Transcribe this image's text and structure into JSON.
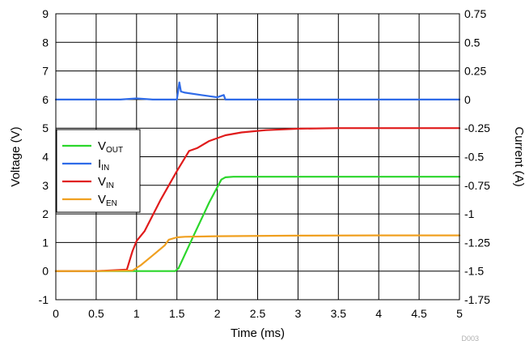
{
  "chart_data": {
    "type": "line",
    "xlabel": "Time (ms)",
    "ylabel": "Voltage (V)",
    "y2label": "Current (A)",
    "xlim": [
      0,
      5
    ],
    "ylim": [
      -1,
      9
    ],
    "y2lim": [
      -1.75,
      0.75
    ],
    "x_ticks": [
      "0",
      "0.5",
      "1",
      "1.5",
      "2",
      "2.5",
      "3",
      "3.5",
      "4",
      "4.5",
      "5"
    ],
    "y_ticks": [
      "-1",
      "0",
      "1",
      "2",
      "3",
      "4",
      "5",
      "6",
      "7",
      "8",
      "9"
    ],
    "y2_ticks": [
      "-1.75",
      "-1.5",
      "-1.25",
      "-1",
      "-0.75",
      "-0.5",
      "-0.25",
      "0",
      "0.25",
      "0.5",
      "0.75"
    ],
    "grid": true,
    "legend_position": "left",
    "footnote": "D003",
    "series": [
      {
        "name": "V",
        "subscript": "OUT",
        "axis": "left",
        "color": "#2bd62b",
        "x": [
          0,
          0.5,
          1.0,
          1.48,
          1.52,
          1.7,
          1.9,
          2.05,
          2.1,
          2.2,
          3,
          4,
          5
        ],
        "y": [
          0,
          0,
          0,
          0,
          0.1,
          1.2,
          2.4,
          3.2,
          3.28,
          3.3,
          3.3,
          3.3,
          3.3
        ]
      },
      {
        "name": "I",
        "subscript": "IN",
        "axis": "right",
        "color": "#2f6be8",
        "x": [
          0,
          0.5,
          0.8,
          1.0,
          1.2,
          1.5,
          1.52,
          1.53,
          1.55,
          1.6,
          1.8,
          2.0,
          2.08,
          2.1,
          2.12,
          2.2,
          3,
          4,
          5
        ],
        "y": [
          0,
          0,
          0,
          0.01,
          0,
          0,
          0.1,
          0.15,
          0.07,
          0.06,
          0.04,
          0.02,
          0.04,
          0.0,
          0.0,
          0,
          0,
          0,
          0
        ]
      },
      {
        "name": "V",
        "subscript": "IN",
        "axis": "left",
        "color": "#e01b1b",
        "x": [
          0,
          0.5,
          0.88,
          0.95,
          1.0,
          1.1,
          1.3,
          1.5,
          1.65,
          1.75,
          1.9,
          2.1,
          2.3,
          2.6,
          3,
          3.5,
          4,
          5
        ],
        "y": [
          0,
          0,
          0.05,
          0.7,
          1.05,
          1.4,
          2.5,
          3.5,
          4.2,
          4.3,
          4.55,
          4.75,
          4.85,
          4.93,
          4.98,
          5,
          5,
          5
        ]
      },
      {
        "name": "V",
        "subscript": "EN",
        "axis": "left",
        "color": "#f0a020",
        "x": [
          0,
          0.5,
          0.95,
          1.05,
          1.2,
          1.35,
          1.4,
          1.5,
          1.6,
          2.0,
          3,
          4,
          5
        ],
        "y": [
          0,
          0,
          0.02,
          0.2,
          0.55,
          0.9,
          1.1,
          1.18,
          1.2,
          1.22,
          1.24,
          1.25,
          1.25
        ]
      }
    ]
  }
}
